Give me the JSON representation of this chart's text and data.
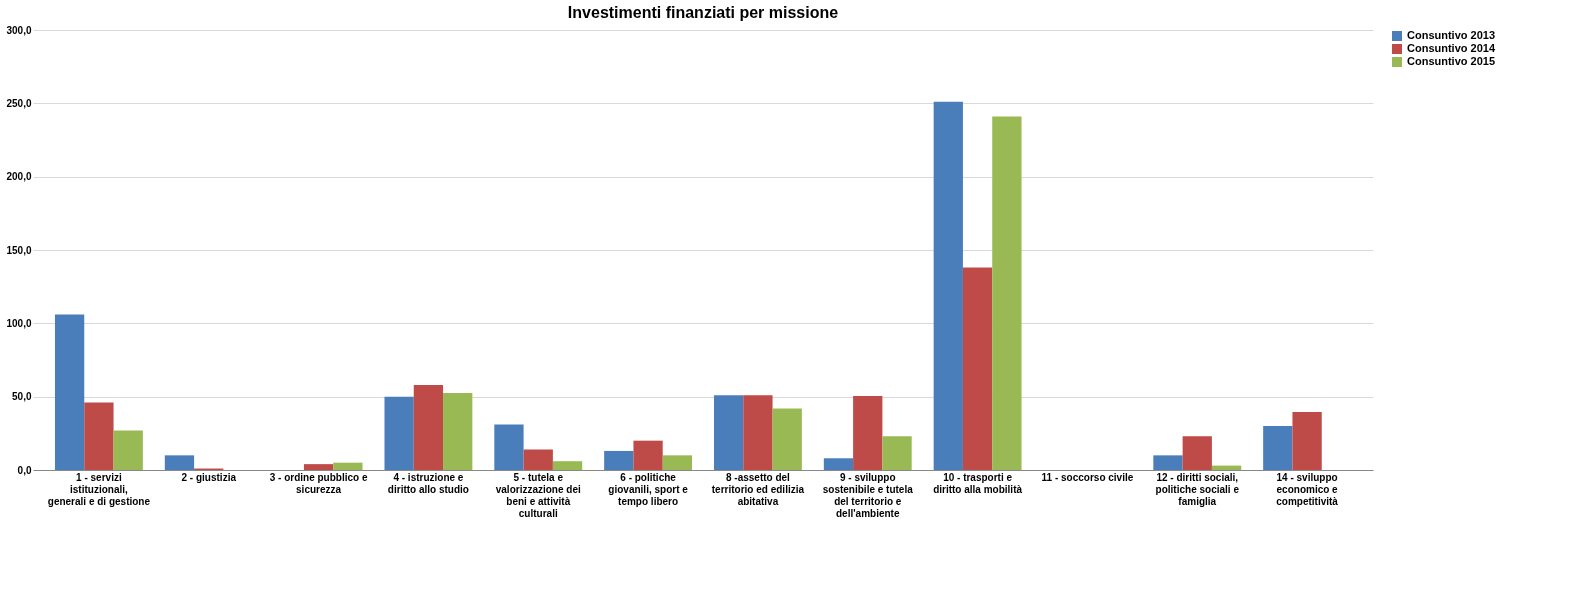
{
  "chart_data": {
    "type": "bar",
    "title": "Investimenti finanziati per missione",
    "categories": [
      "1 - servizi istituzionali, generali e di gestione",
      "2 - giustizia",
      "3 - ordine pubblico e sicurezza",
      "4 - istruzione e diritto allo studio",
      "5 - tutela e valorizzazione dei beni e attività culturali",
      "6 - politiche giovanili, sport e tempo libero",
      "8 -assetto del territorio ed edilizia abitativa",
      "9 - sviluppo sostenibile e tutela del territorio e dell'ambiente",
      "10 - trasporti e diritto alla mobilità",
      "11 - soccorso civile",
      "12 - diritti sociali, politiche sociali e famiglia",
      "14 - sviluppo economico e competitività"
    ],
    "series": [
      {
        "name": "Consuntivo 2013",
        "color": "#4a7ebb",
        "values": [
          106,
          10,
          0,
          50,
          31,
          13,
          51,
          8,
          251,
          0,
          10,
          30
        ]
      },
      {
        "name": "Consuntivo 2014",
        "color": "#be4b48",
        "values": [
          46,
          1,
          4,
          58,
          14,
          20,
          51,
          50.5,
          138,
          0,
          23,
          39.5
        ]
      },
      {
        "name": "Consuntivo 2015",
        "color": "#98b954",
        "values": [
          27,
          null,
          5,
          52.5,
          6,
          10,
          42,
          23,
          241,
          null,
          3,
          0
        ]
      }
    ],
    "ylim": [
      0,
      300
    ],
    "yticks": [
      {
        "value": 0,
        "label": "0,0"
      },
      {
        "value": 50,
        "label": "50,0"
      },
      {
        "value": 100,
        "label": "100,0"
      },
      {
        "value": 150,
        "label": "150,0"
      },
      {
        "value": 200,
        "label": "200,0"
      },
      {
        "value": 250,
        "label": "250,0"
      },
      {
        "value": 300,
        "label": "300,0"
      }
    ],
    "grid": "y",
    "legend": "right"
  }
}
